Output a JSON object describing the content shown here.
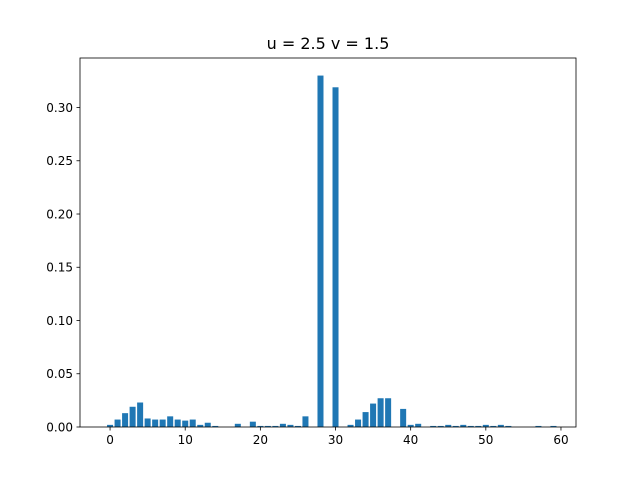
{
  "chart_data": {
    "type": "bar",
    "title": "u = 2.5  v = 1.5",
    "xlabel": "",
    "ylabel": "",
    "x": [
      0,
      1,
      2,
      3,
      4,
      5,
      6,
      7,
      8,
      9,
      10,
      11,
      12,
      13,
      14,
      15,
      16,
      17,
      18,
      19,
      20,
      21,
      22,
      23,
      24,
      25,
      26,
      27,
      28,
      29,
      30,
      31,
      32,
      33,
      34,
      35,
      36,
      37,
      38,
      39,
      40,
      41,
      42,
      43,
      44,
      45,
      46,
      47,
      48,
      49,
      50,
      51,
      52,
      53,
      54,
      55,
      56,
      57,
      58,
      59,
      60
    ],
    "values": [
      0.002,
      0.007,
      0.013,
      0.019,
      0.023,
      0.008,
      0.007,
      0.007,
      0.01,
      0.007,
      0.006,
      0.007,
      0.002,
      0.004,
      0.001,
      0.0,
      0.0,
      0.003,
      0.0,
      0.005,
      0.001,
      0.001,
      0.001,
      0.003,
      0.002,
      0.001,
      0.01,
      0.0,
      0.33,
      0.0,
      0.319,
      0.0,
      0.002,
      0.007,
      0.014,
      0.022,
      0.027,
      0.027,
      0.0,
      0.017,
      0.002,
      0.003,
      0.0,
      0.001,
      0.001,
      0.002,
      0.001,
      0.002,
      0.001,
      0.001,
      0.002,
      0.001,
      0.002,
      0.001,
      0.0,
      0.0,
      0.0,
      0.001,
      0.0,
      0.001,
      0.0
    ],
    "xlim": [
      -4.0,
      62.0
    ],
    "ylim": [
      0.0,
      0.3465
    ],
    "xticks": [
      0,
      10,
      20,
      30,
      40,
      50,
      60
    ],
    "xtick_labels": [
      "0",
      "10",
      "20",
      "30",
      "40",
      "50",
      "60"
    ],
    "yticks": [
      0.0,
      0.05,
      0.1,
      0.15,
      0.2,
      0.25,
      0.3
    ],
    "ytick_labels": [
      "0.00",
      "0.05",
      "0.10",
      "0.15",
      "0.20",
      "0.25",
      "0.30"
    ],
    "bar_width": 0.8,
    "bar_color": "#1f77b4",
    "grid": false,
    "legend": "none"
  }
}
